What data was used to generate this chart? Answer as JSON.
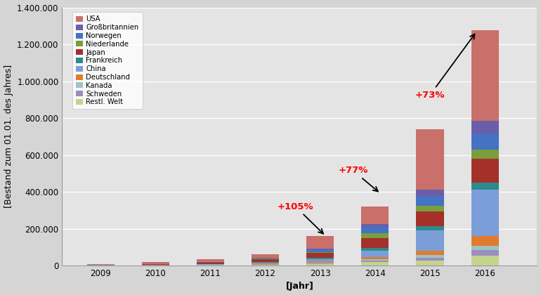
{
  "years": [
    2009,
    2010,
    2011,
    2012,
    2013,
    2014,
    2015,
    2016
  ],
  "countries": [
    "Restl. Welt",
    "Schweden",
    "Kanada",
    "Deutschland",
    "China",
    "Frankreich",
    "Japan",
    "Niederlande",
    "Norwegen",
    "Großbritannien",
    "USA"
  ],
  "colors": {
    "USA": "#C9706A",
    "Großbritannien": "#6B5EA8",
    "Norwegen": "#4472C4",
    "Niederlande": "#7A9E3B",
    "Japan": "#A5302A",
    "Frankreich": "#2E8B8B",
    "China": "#7B9ED9",
    "Deutschland": "#E07B30",
    "Kanada": "#9DC3C3",
    "Schweden": "#9B8DC0",
    "Restl. Welt": "#C4D48E"
  },
  "data": {
    "Restl. Welt": [
      1000,
      1500,
      2500,
      5000,
      8000,
      18000,
      28000,
      55000
    ],
    "Schweden": [
      300,
      600,
      1000,
      2000,
      4500,
      9000,
      15000,
      28000
    ],
    "Kanada": [
      300,
      500,
      900,
      1800,
      4000,
      8000,
      13000,
      22000
    ],
    "Deutschland": [
      300,
      600,
      1200,
      3000,
      6000,
      12000,
      25000,
      55000
    ],
    "China": [
      400,
      800,
      1500,
      5000,
      10000,
      33000,
      109000,
      250000
    ],
    "Frankreich": [
      300,
      600,
      1200,
      3500,
      8000,
      15000,
      22000,
      40000
    ],
    "Japan": [
      1500,
      3500,
      7000,
      15000,
      27000,
      55000,
      82000,
      130000
    ],
    "Niederlande": [
      200,
      300,
      600,
      1500,
      4500,
      26000,
      30000,
      50000
    ],
    "Norwegen": [
      100,
      400,
      1200,
      4000,
      15000,
      33000,
      52000,
      85000
    ],
    "Großbritannien": [
      100,
      300,
      600,
      1500,
      5500,
      14000,
      35000,
      70000
    ],
    "USA": [
      3500,
      9000,
      16000,
      20000,
      68000,
      97000,
      330000,
      490000
    ]
  },
  "ylabel": "[Bestand zum 01.01. des Jahres]",
  "xlabel": "[Jahr]",
  "ylim": [
    0,
    1400000
  ],
  "yticks": [
    0,
    200000,
    400000,
    600000,
    800000,
    1000000,
    1200000,
    1400000
  ],
  "ytick_labels": [
    "0",
    "200.000",
    "400.000",
    "600.000",
    "800.000",
    "1.000.000",
    "1.200.000",
    "1.400.000"
  ],
  "bg_color": "#D5D5D5",
  "plot_bg_color": "#E4E4E4",
  "axis_fontsize": 9,
  "tick_fontsize": 8.5
}
